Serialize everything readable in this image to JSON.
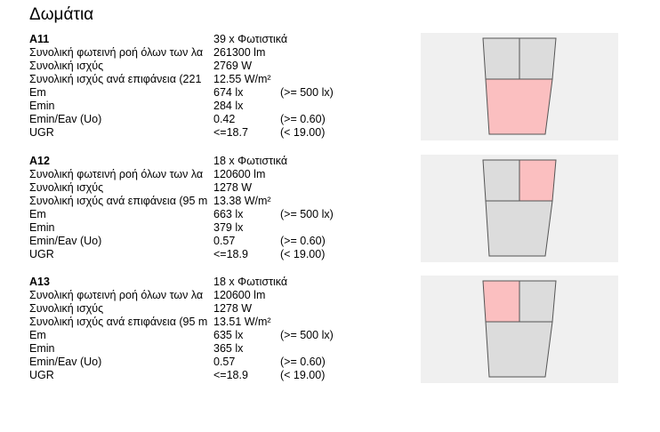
{
  "page": {
    "title": "Δωμάτια"
  },
  "colors": {
    "cell_default": "#dcdcdc",
    "cell_highlight": "#fbbfc0",
    "cell_stroke": "#555555",
    "diagram_bg": "#f0f0f0"
  },
  "rooms": [
    {
      "name": "A11",
      "luminaires": "39 x Φωτιστικά",
      "flux_label": "Συνολική φωτεινή ροή όλων των λα",
      "flux_value": "261300 lm",
      "power_label": "Συνολική ισχύς",
      "power_value": "2769 W",
      "power_area_label": "Συνολική ισχύς ανά επιφάνεια (221",
      "power_area_value": "12.55 W/m²",
      "em_label": "Em",
      "em_value": "674 lx",
      "em_req": "(>= 500 lx)",
      "emin_label": "Emin",
      "emin_value": "284 lx",
      "uo_label": "Emin/Eav (Uo)",
      "uo_value": "0.42",
      "uo_req": "(>= 0.60)",
      "ugr_label": "UGR",
      "ugr_value": "<=18.7",
      "ugr_req": "(< 19.00)",
      "highlighted_zone": "bottom"
    },
    {
      "name": "A12",
      "luminaires": "18 x Φωτιστικά",
      "flux_label": "Συνολική φωτεινή ροή όλων των λα",
      "flux_value": "120600 lm",
      "power_label": "Συνολική ισχύς",
      "power_value": "1278 W",
      "power_area_label": "Συνολική ισχύς ανά επιφάνεια (95 m",
      "power_area_value": "13.38 W/m²",
      "em_label": "Em",
      "em_value": "663 lx",
      "em_req": "(>= 500 lx)",
      "emin_label": "Emin",
      "emin_value": "379 lx",
      "uo_label": "Emin/Eav (Uo)",
      "uo_value": "0.57",
      "uo_req": "(>= 0.60)",
      "ugr_label": "UGR",
      "ugr_value": "<=18.9",
      "ugr_req": "(< 19.00)",
      "highlighted_zone": "top-right"
    },
    {
      "name": "A13",
      "luminaires": "18 x Φωτιστικά",
      "flux_label": "Συνολική φωτεινή ροή όλων των λα",
      "flux_value": "120600 lm",
      "power_label": "Συνολική ισχύς",
      "power_value": "1278 W",
      "power_area_label": "Συνολική ισχύς ανά επιφάνεια (95 m",
      "power_area_value": "13.51 W/m²",
      "em_label": "Em",
      "em_value": "635 lx",
      "em_req": "(>= 500 lx)",
      "emin_label": "Emin",
      "emin_value": "365 lx",
      "uo_label": "Emin/Eav (Uo)",
      "uo_value": "0.57",
      "uo_req": "(>= 0.60)",
      "ugr_label": "UGR",
      "ugr_value": "<=18.9",
      "ugr_req": "(< 19.00)",
      "highlighted_zone": "top-left"
    }
  ]
}
